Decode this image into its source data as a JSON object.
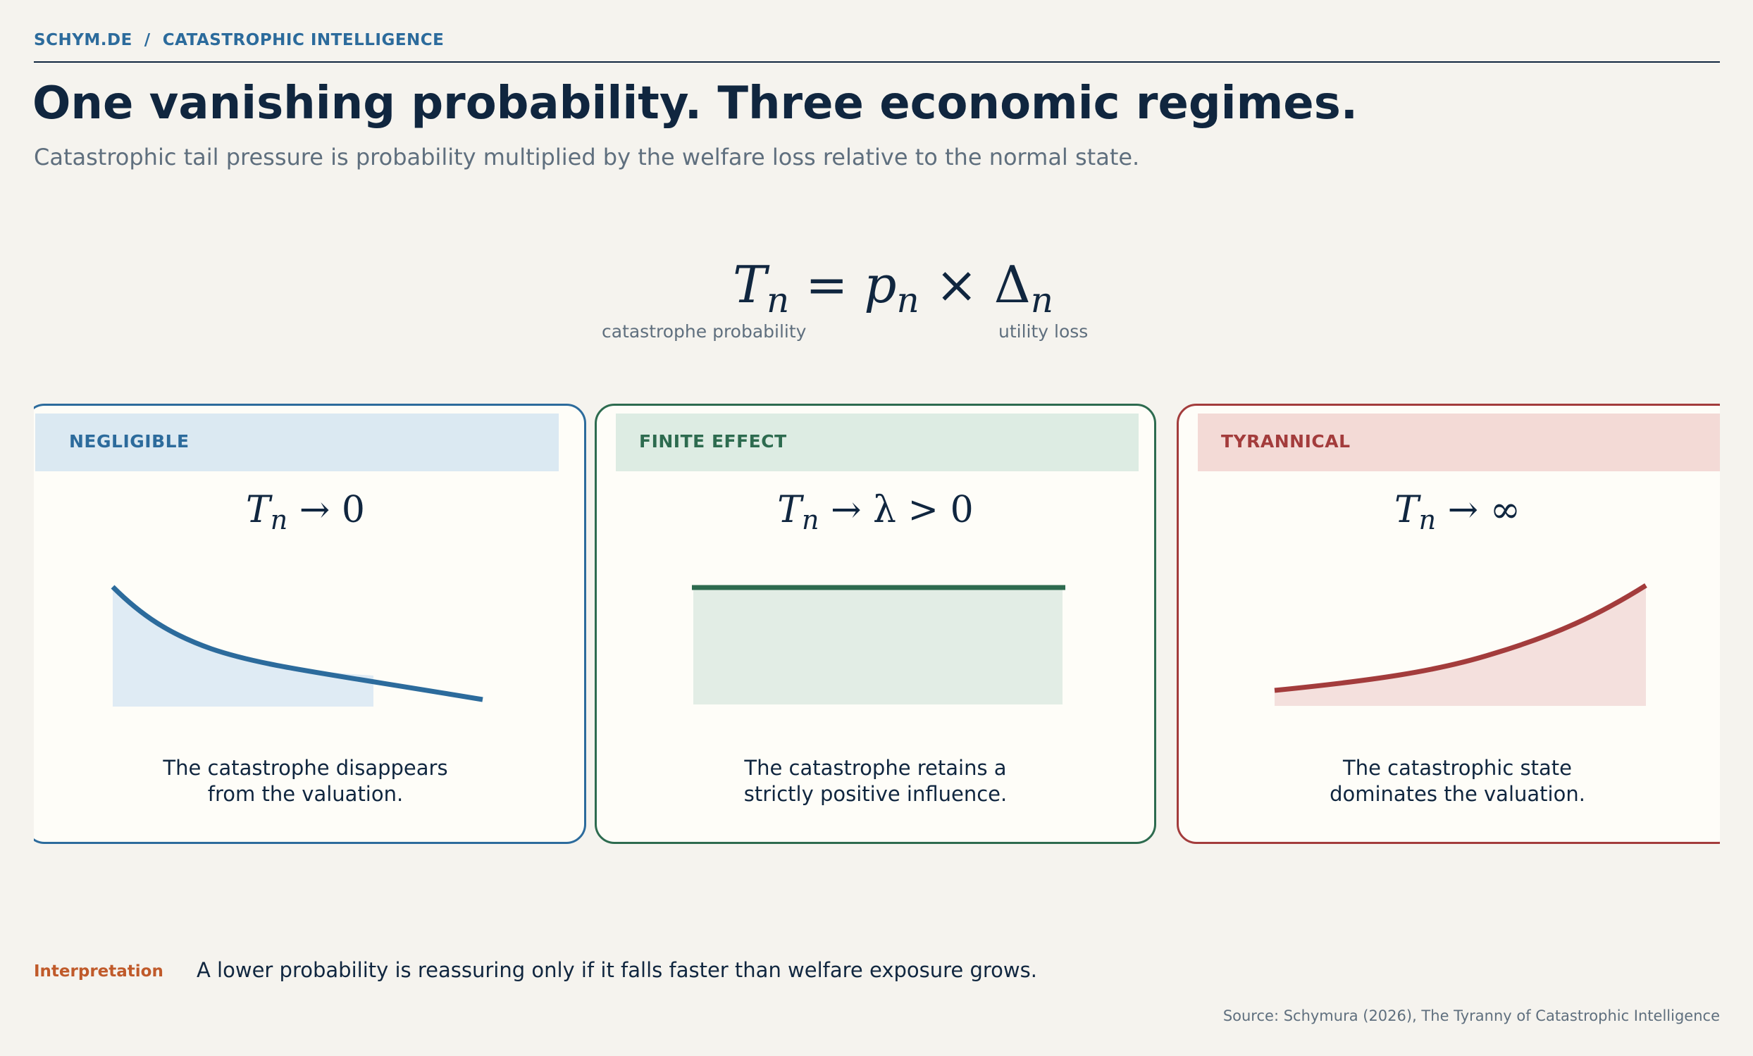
{
  "header": {
    "breadcrumb": "SCHYM.DE  /  CATASTROPHIC INTELLIGENCE",
    "title": "One vanishing probability. Three economic regimes.",
    "subtitle": "Catastrophic tail pressure is probability multiplied by the welfare loss relative to the normal state."
  },
  "formula": {
    "lhs": "T",
    "lhs_sub": "n",
    "eq": " = ",
    "p": "p",
    "p_sub": "n",
    "times": " × ",
    "delta": "Δ",
    "delta_sub": "n",
    "label_p": "catastrophe probability",
    "label_delta": "utility loss"
  },
  "regimes": [
    {
      "label": "NEGLIGIBLE",
      "math_symbol": "T",
      "math_sub": "n",
      "math_rest": " → 0",
      "description_line1": "The catastrophe disappears",
      "description_line2": "from the valuation.",
      "shape": "decay",
      "color": "#2c6b9c",
      "fill": "#dfebf4"
    },
    {
      "label": "FINITE EFFECT",
      "math_symbol": "T",
      "math_sub": "n",
      "math_rest": " → λ > 0",
      "description_line1": "The catastrophe retains a",
      "description_line2": "strictly positive influence.",
      "shape": "flat",
      "color": "#2d6b4f",
      "fill": "#e2ede5"
    },
    {
      "label": "TYRANNICAL",
      "math_symbol": "T",
      "math_sub": "n",
      "math_rest": " → ∞",
      "description_line1": "The catastrophic state",
      "description_line2": "dominates the valuation.",
      "shape": "growth",
      "color": "#a33c3c",
      "fill": "#f4e0dd"
    }
  ],
  "footer": {
    "interpretation_label": "Interpretation",
    "interpretation_text": "A lower probability is reassuring only if it falls faster than welfare exposure grows.",
    "source": "Source: Schymura (2026), The Tyranny of Catastrophic Intelligence"
  },
  "colors": {
    "background": "#f5f3ee",
    "ink": "#10263f",
    "muted": "#5f6f7e",
    "accent_orange": "#c05a2a"
  }
}
